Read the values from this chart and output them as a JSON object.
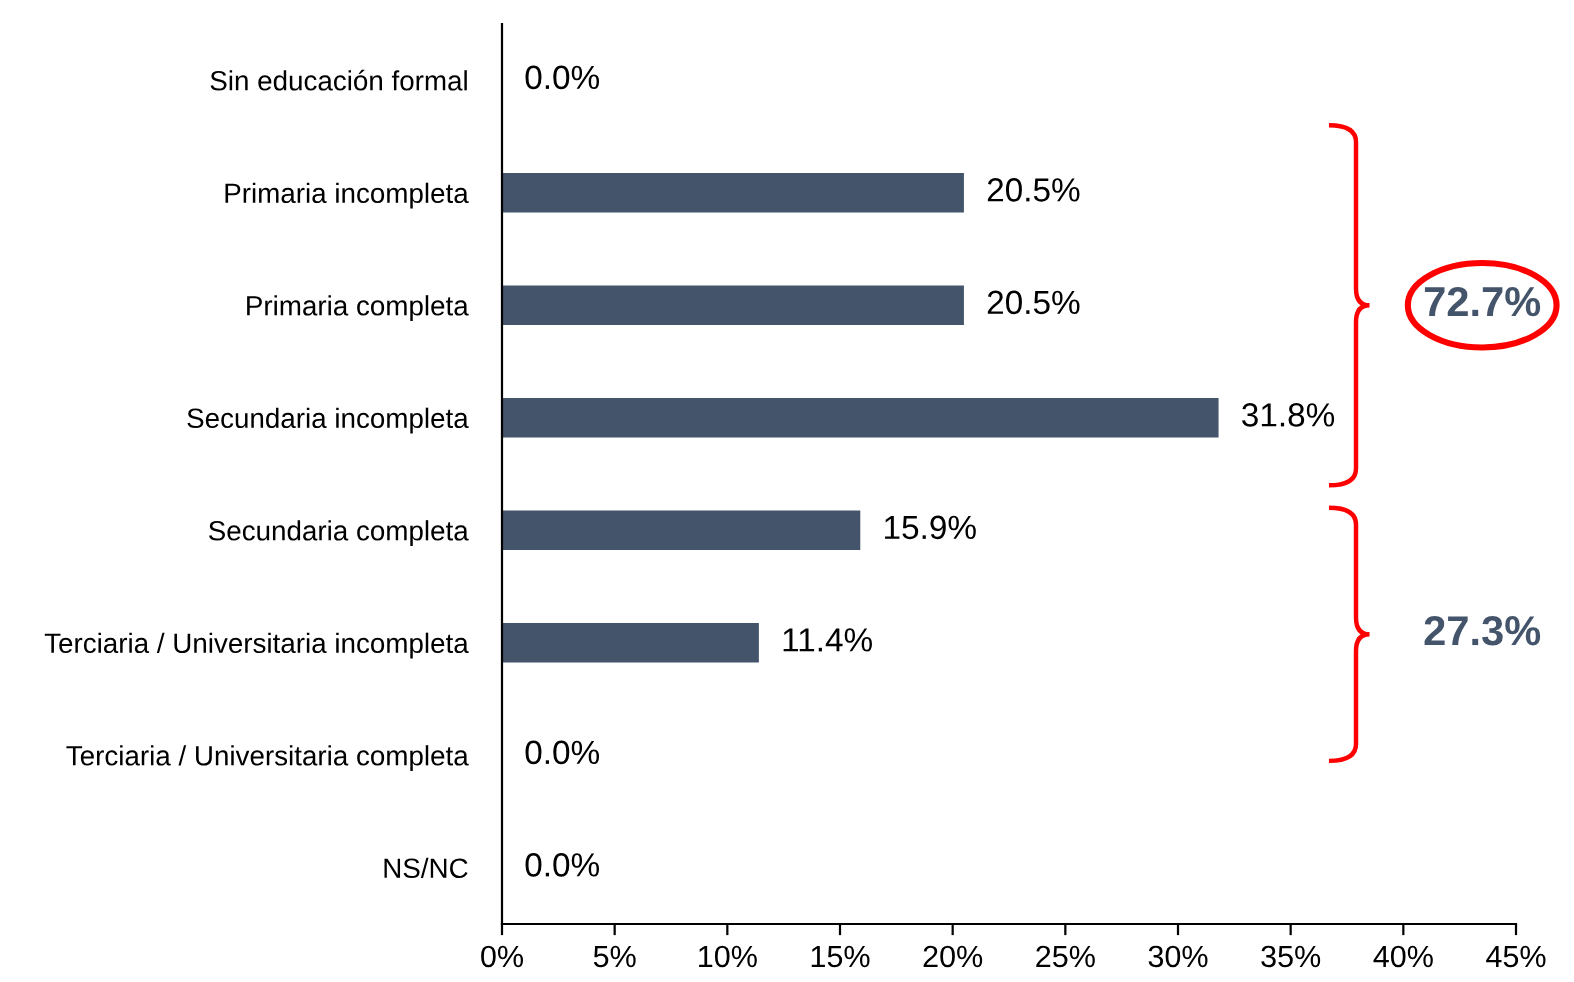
{
  "chart_data": {
    "type": "bar",
    "orientation": "horizontal",
    "categories": [
      "Sin educación formal",
      "Primaria incompleta",
      "Primaria completa",
      "Secundaria incompleta",
      "Secundaria completa",
      "Terciaria / Universitaria incompleta",
      "Terciaria / Universitaria completa",
      "NS/NC"
    ],
    "values": [
      0.0,
      20.5,
      20.5,
      31.8,
      15.9,
      11.4,
      0.0,
      0.0
    ],
    "value_labels": [
      "0.0%",
      "20.5%",
      "20.5%",
      "31.8%",
      "15.9%",
      "11.4%",
      "0.0%",
      "0.0%"
    ],
    "color": "#44546a",
    "xlim": [
      0,
      45
    ],
    "xticks": [
      {
        "value": 0,
        "label": "0%"
      },
      {
        "value": 5,
        "label": "5%"
      },
      {
        "value": 10,
        "label": "10%"
      },
      {
        "value": 15,
        "label": "15%"
      },
      {
        "value": 20,
        "label": "20%"
      },
      {
        "value": 25,
        "label": "25%"
      },
      {
        "value": 30,
        "label": "30%"
      },
      {
        "value": 35,
        "label": "35%"
      },
      {
        "value": 40,
        "label": "40%"
      },
      {
        "value": 45,
        "label": "45%"
      }
    ],
    "grid": false,
    "legend": false,
    "annotations": [
      "72.7%",
      "27.3%"
    ]
  }
}
